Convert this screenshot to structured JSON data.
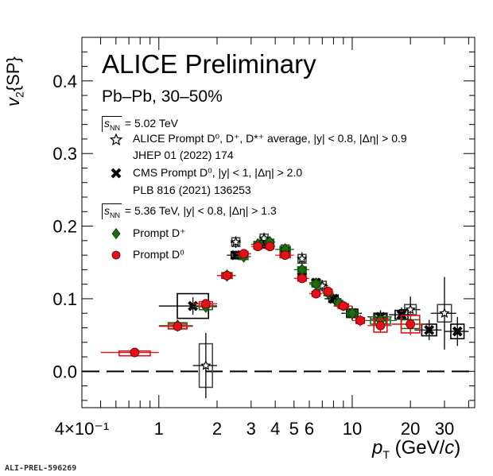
{
  "chart_data": {
    "type": "scatter",
    "x_scale": "log",
    "xlim": [
      0.4,
      43
    ],
    "ylim": [
      -0.05,
      0.46
    ],
    "xlabel": "p_T (GeV/c)",
    "ylabel": "v_2{SP}",
    "title": "ALICE Preliminary",
    "subtitle": "Pb–Pb, 30–50%",
    "x_ticks": [
      {
        "value": 0.4,
        "label": "4×10⁻¹"
      },
      {
        "value": 1,
        "label": "1"
      },
      {
        "value": 2,
        "label": "2"
      },
      {
        "value": 3,
        "label": "3"
      },
      {
        "value": 4,
        "label": "4"
      },
      {
        "value": 5,
        "label": "5"
      },
      {
        "value": 6,
        "label": "6"
      },
      {
        "value": 10,
        "label": "10"
      },
      {
        "value": 20,
        "label": "20"
      },
      {
        "value": 30,
        "label": "30"
      }
    ],
    "y_ticks": [
      {
        "value": 0.0,
        "label": "0.0"
      },
      {
        "value": 0.1,
        "label": "0.1"
      },
      {
        "value": 0.2,
        "label": "0.2"
      },
      {
        "value": 0.3,
        "label": "0.3"
      },
      {
        "value": 0.4,
        "label": "0.4"
      }
    ],
    "legend_groups": [
      {
        "energy": "= 5.02 TeV",
        "entries": [
          {
            "marker": "open-star",
            "lines": [
              "ALICE Prompt D⁰, D⁺, D*⁺ average, |y| < 0.8, |Δη| > 0.9",
              "JHEP 01 (2022) 174"
            ]
          },
          {
            "marker": "cross",
            "lines": [
              "CMS Prompt D⁰, |y| < 1, |Δη| > 2.0",
              "PLB 816 (2021) 136253"
            ]
          }
        ]
      },
      {
        "energy": "= 5.36 TeV, |y| < 0.8, |Δη| > 1.3",
        "entries": [
          {
            "marker": "green-diamond",
            "lines": [
              "Prompt D⁺"
            ]
          },
          {
            "marker": "red-circle",
            "lines": [
              "Prompt D⁰"
            ]
          }
        ]
      }
    ],
    "series": [
      {
        "name": "ALICE Prompt D⁰, D⁺, D*⁺ average",
        "marker": "open-star",
        "color": "#000000",
        "box_color": "#444444",
        "points": [
          {
            "x": 1.75,
            "y": 0.008,
            "xerr": 0.25,
            "yerr": 0.045,
            "sys": 0.03
          },
          {
            "x": 2.5,
            "y": 0.178,
            "xerr": 0.15,
            "yerr": 0.008,
            "sys": 0.006
          },
          {
            "x": 3.5,
            "y": 0.183,
            "xerr": 0.15,
            "yerr": 0.008,
            "sys": 0.006
          },
          {
            "x": 4.5,
            "y": 0.168,
            "xerr": 0.2,
            "yerr": 0.008,
            "sys": 0.006
          },
          {
            "x": 5.5,
            "y": 0.155,
            "xerr": 0.25,
            "yerr": 0.009,
            "sys": 0.006
          },
          {
            "x": 7,
            "y": 0.118,
            "xerr": 0.5,
            "yerr": 0.008,
            "sys": 0.006
          },
          {
            "x": 10,
            "y": 0.08,
            "xerr": 1.2,
            "yerr": 0.01,
            "sys": 0.006
          },
          {
            "x": 14,
            "y": 0.072,
            "xerr": 1.6,
            "yerr": 0.012,
            "sys": 0.007
          },
          {
            "x": 20,
            "y": 0.085,
            "xerr": 2.5,
            "yerr": 0.018,
            "sys": 0.007
          },
          {
            "x": 30,
            "y": 0.08,
            "xerr": 4.5,
            "yerr": 0.05,
            "sys": 0.012
          }
        ]
      },
      {
        "name": "CMS Prompt D⁰",
        "marker": "cross",
        "color": "#000000",
        "box_color": "#000000",
        "points": [
          {
            "x": 1.5,
            "y": 0.09,
            "xerr": 0.5,
            "yerr": 0.012,
            "sys": 0.017
          },
          {
            "x": 2.5,
            "y": 0.16,
            "xerr": 0.25,
            "yerr": 0.006,
            "sys": 0.005
          },
          {
            "x": 3.5,
            "y": 0.175,
            "xerr": 0.25,
            "yerr": 0.006,
            "sys": 0.005
          },
          {
            "x": 4.5,
            "y": 0.165,
            "xerr": 0.25,
            "yerr": 0.006,
            "sys": 0.005
          },
          {
            "x": 5.5,
            "y": 0.138,
            "xerr": 0.3,
            "yerr": 0.006,
            "sys": 0.005
          },
          {
            "x": 6.5,
            "y": 0.122,
            "xerr": 0.5,
            "yerr": 0.007,
            "sys": 0.005
          },
          {
            "x": 8,
            "y": 0.1,
            "xerr": 0.8,
            "yerr": 0.007,
            "sys": 0.005
          },
          {
            "x": 10,
            "y": 0.08,
            "xerr": 1.2,
            "yerr": 0.008,
            "sys": 0.005
          },
          {
            "x": 14,
            "y": 0.075,
            "xerr": 2,
            "yerr": 0.008,
            "sys": 0.005
          },
          {
            "x": 18,
            "y": 0.078,
            "xerr": 2.5,
            "yerr": 0.01,
            "sys": 0.006
          },
          {
            "x": 25,
            "y": 0.057,
            "xerr": 4,
            "yerr": 0.014,
            "sys": 0.008
          },
          {
            "x": 35,
            "y": 0.055,
            "xerr": 5,
            "yerr": 0.02,
            "sys": 0.01
          }
        ]
      },
      {
        "name": "Prompt D⁺",
        "marker": "green-diamond",
        "color": "#1e6b14",
        "box_color": "#1e6b14",
        "points": [
          {
            "x": 1.25,
            "y": 0.063,
            "xerr": 0.25,
            "yerr": 0.007,
            "sys": 0.004
          },
          {
            "x": 1.75,
            "y": 0.089,
            "xerr": 0.25,
            "yerr": 0.006,
            "sys": 0.004
          },
          {
            "x": 2.25,
            "y": 0.132,
            "xerr": 0.25,
            "yerr": 0.006,
            "sys": 0.004
          },
          {
            "x": 2.75,
            "y": 0.158,
            "xerr": 0.25,
            "yerr": 0.006,
            "sys": 0.004
          },
          {
            "x": 3.25,
            "y": 0.175,
            "xerr": 0.25,
            "yerr": 0.006,
            "sys": 0.004
          },
          {
            "x": 3.75,
            "y": 0.178,
            "xerr": 0.25,
            "yerr": 0.006,
            "sys": 0.004
          },
          {
            "x": 4.5,
            "y": 0.168,
            "xerr": 0.5,
            "yerr": 0.006,
            "sys": 0.004
          },
          {
            "x": 5.5,
            "y": 0.14,
            "xerr": 0.5,
            "yerr": 0.006,
            "sys": 0.004
          },
          {
            "x": 6.5,
            "y": 0.12,
            "xerr": 0.5,
            "yerr": 0.007,
            "sys": 0.004
          },
          {
            "x": 7.5,
            "y": 0.108,
            "xerr": 0.5,
            "yerr": 0.007,
            "sys": 0.004
          },
          {
            "x": 8.5,
            "y": 0.094,
            "xerr": 0.5,
            "yerr": 0.008,
            "sys": 0.004
          },
          {
            "x": 10,
            "y": 0.08,
            "xerr": 1,
            "yerr": 0.008,
            "sys": 0.004
          },
          {
            "x": 14,
            "y": 0.07,
            "xerr": 3,
            "yerr": 0.01,
            "sys": 0.005
          },
          {
            "x": 20,
            "y": 0.065,
            "xerr": 4,
            "yerr": 0.015,
            "sys": 0.006
          }
        ]
      },
      {
        "name": "Prompt D⁰",
        "marker": "red-circle",
        "color": "#e0131a",
        "box_color": "#e0131a",
        "points": [
          {
            "x": 0.75,
            "y": 0.026,
            "xerr": 0.25,
            "yerr": 0.005,
            "sys": 0.002
          },
          {
            "x": 1.25,
            "y": 0.062,
            "xerr": 0.25,
            "yerr": 0.005,
            "sys": 0.003
          },
          {
            "x": 1.75,
            "y": 0.093,
            "xerr": 0.25,
            "yerr": 0.005,
            "sys": 0.003
          },
          {
            "x": 2.25,
            "y": 0.132,
            "xerr": 0.25,
            "yerr": 0.005,
            "sys": 0.003
          },
          {
            "x": 2.75,
            "y": 0.162,
            "xerr": 0.25,
            "yerr": 0.005,
            "sys": 0.003
          },
          {
            "x": 3.25,
            "y": 0.172,
            "xerr": 0.25,
            "yerr": 0.005,
            "sys": 0.003
          },
          {
            "x": 3.75,
            "y": 0.172,
            "xerr": 0.25,
            "yerr": 0.005,
            "sys": 0.003
          },
          {
            "x": 4.5,
            "y": 0.16,
            "xerr": 0.5,
            "yerr": 0.005,
            "sys": 0.003
          },
          {
            "x": 5.5,
            "y": 0.128,
            "xerr": 0.5,
            "yerr": 0.006,
            "sys": 0.003
          },
          {
            "x": 6.5,
            "y": 0.107,
            "xerr": 0.5,
            "yerr": 0.006,
            "sys": 0.003
          },
          {
            "x": 7.5,
            "y": 0.11,
            "xerr": 0.5,
            "yerr": 0.007,
            "sys": 0.003
          },
          {
            "x": 9,
            "y": 0.09,
            "xerr": 1,
            "yerr": 0.007,
            "sys": 0.003
          },
          {
            "x": 11,
            "y": 0.07,
            "xerr": 1,
            "yerr": 0.008,
            "sys": 0.004
          },
          {
            "x": 14,
            "y": 0.063,
            "xerr": 2,
            "yerr": 0.01,
            "sys": 0.009
          },
          {
            "x": 20,
            "y": 0.065,
            "xerr": 4,
            "yerr": 0.015,
            "sys": 0.012
          }
        ]
      }
    ],
    "reference_line": {
      "y": 0.0,
      "style": "dashed"
    },
    "footer": "ALI-PREL-596269"
  }
}
